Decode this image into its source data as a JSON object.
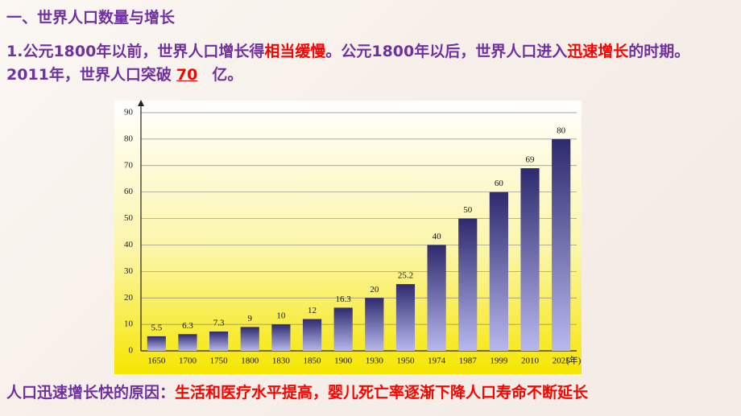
{
  "heading": "一、世界人口数量与增长",
  "paragraph": [
    {
      "text": "1.公元1800年以前，世界人口增长得",
      "color": "#7030a0"
    },
    {
      "text": "相当缓慢",
      "color": "#ff0000"
    },
    {
      "text": "。公元1800年以后，世界人口进入",
      "color": "#7030a0"
    },
    {
      "text": "迅速增长",
      "color": "#ff0000"
    },
    {
      "text": "的时期。2011年，世界人口突破",
      "color": "#7030a0"
    },
    {
      "text": "70",
      "color": "#ff0000",
      "underline": true
    },
    {
      "text": "亿。",
      "color": "#7030a0"
    }
  ],
  "reason": [
    {
      "text": "人口迅速增长快的原因：",
      "color": "#7030a0"
    },
    {
      "text": "生活和医疗水平提高，婴儿死亡率逐渐下降人口寿命不断延长",
      "color": "#ff0000"
    }
  ],
  "chart_data": {
    "type": "bar",
    "categories": [
      "1650",
      "1700",
      "1750",
      "1800",
      "1830",
      "1850",
      "1900",
      "1930",
      "1950",
      "1974",
      "1987",
      "1999",
      "2010",
      "2025"
    ],
    "values": [
      5.5,
      6.3,
      7.3,
      9,
      10,
      12,
      16.3,
      20,
      25.2,
      40,
      50,
      60,
      69,
      80
    ],
    "x_unit": "(年)",
    "ylim": [
      0,
      90
    ],
    "yticks": [
      0,
      10,
      20,
      30,
      40,
      50,
      60,
      70,
      80,
      90
    ],
    "grid": true,
    "color": "#2e2a6e"
  }
}
